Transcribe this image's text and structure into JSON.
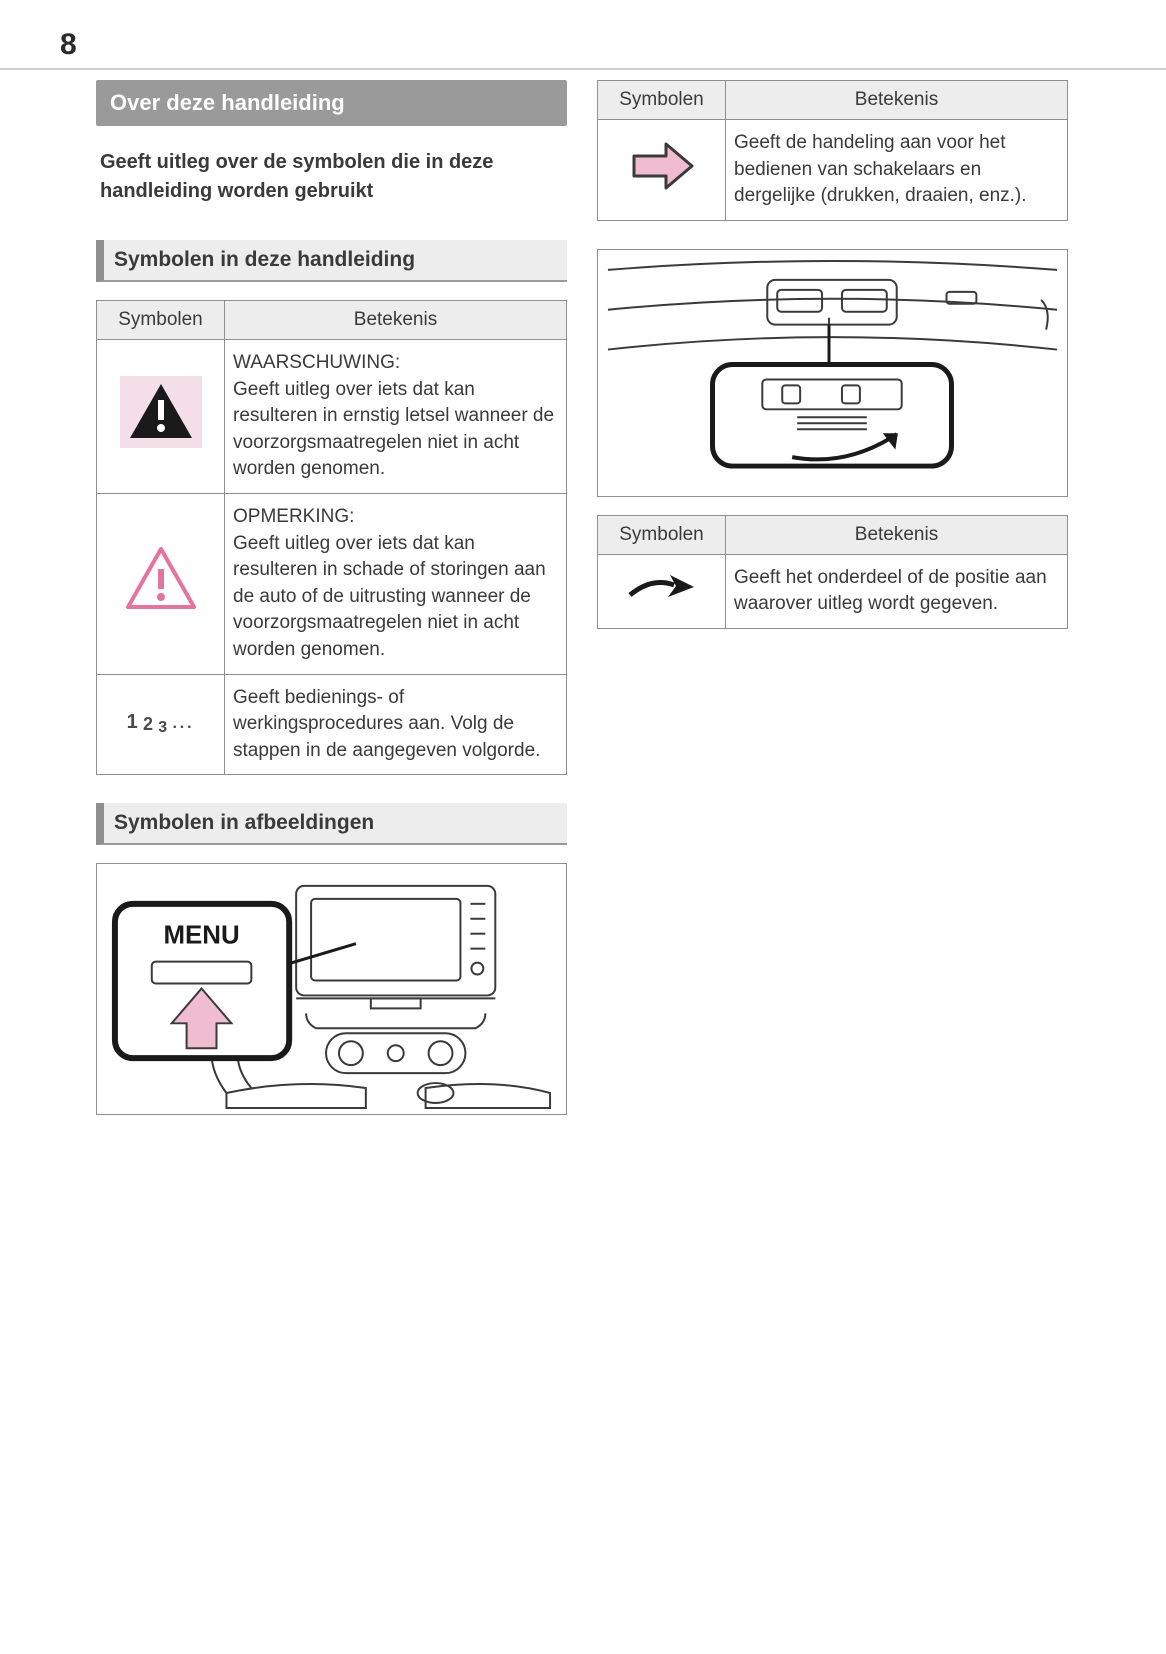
{
  "page_number": "8",
  "colors": {
    "page_bg": "#ffffff",
    "text": "#3a3a3a",
    "rule": "#cfcfcf",
    "titlebar_bg": "#9a9a9a",
    "titlebar_text": "#ffffff",
    "section_bg": "#ededed",
    "section_border": "#8f8f8f",
    "table_border": "#8f8f8f",
    "table_header_bg": "#ededed",
    "warning_fill": "#f4dfe8",
    "warning_triangle": "#1a1a1a",
    "notice_fill": "#ffffff",
    "notice_stroke": "#e573a0",
    "arrow_fill": "#f0bccf",
    "arrow_stroke": "#3a3a3a",
    "indicator_arrow": "#1a1a1a"
  },
  "left": {
    "title": "Over deze handleiding",
    "intro": "Geeft uitleg over de symbolen die in deze handleiding worden gebruikt",
    "section1_heading": "Symbolen in deze handleiding",
    "table1": {
      "headers": {
        "col1": "Symbolen",
        "col2": "Betekenis"
      },
      "rows": [
        {
          "icon": "warning",
          "meaning": "WAARSCHUWING:\nGeeft uitleg over iets dat kan resulteren in ernstig letsel wanneer de voorzorgsmaatregelen niet in acht worden genomen."
        },
        {
          "icon": "notice",
          "meaning": "OPMERKING:\nGeeft uitleg over iets dat kan resulteren in schade of storingen aan de auto of de uitrusting wanneer de voorzorgsmaatregelen niet in acht worden genomen."
        },
        {
          "icon": "steps",
          "steps_label": "1 2 3 …",
          "meaning": "Geeft bedienings- of werkingsprocedures aan. Volg de stappen in de aangegeven volgorde."
        }
      ]
    },
    "section2_heading": "Symbolen in afbeeldingen",
    "illustration1_label": "MENU"
  },
  "right": {
    "table2": {
      "headers": {
        "col1": "Symbolen",
        "col2": "Betekenis"
      },
      "rows": [
        {
          "icon": "action-arrow",
          "meaning": "Geeft de handeling aan voor het bedienen van schakelaars en dergelijke (drukken, draaien, enz.)."
        }
      ]
    },
    "table3": {
      "headers": {
        "col1": "Symbolen",
        "col2": "Betekenis"
      },
      "rows": [
        {
          "icon": "indicator-arrow",
          "meaning": "Geeft het onderdeel of de positie aan waarover uitleg wordt gegeven."
        }
      ]
    }
  }
}
